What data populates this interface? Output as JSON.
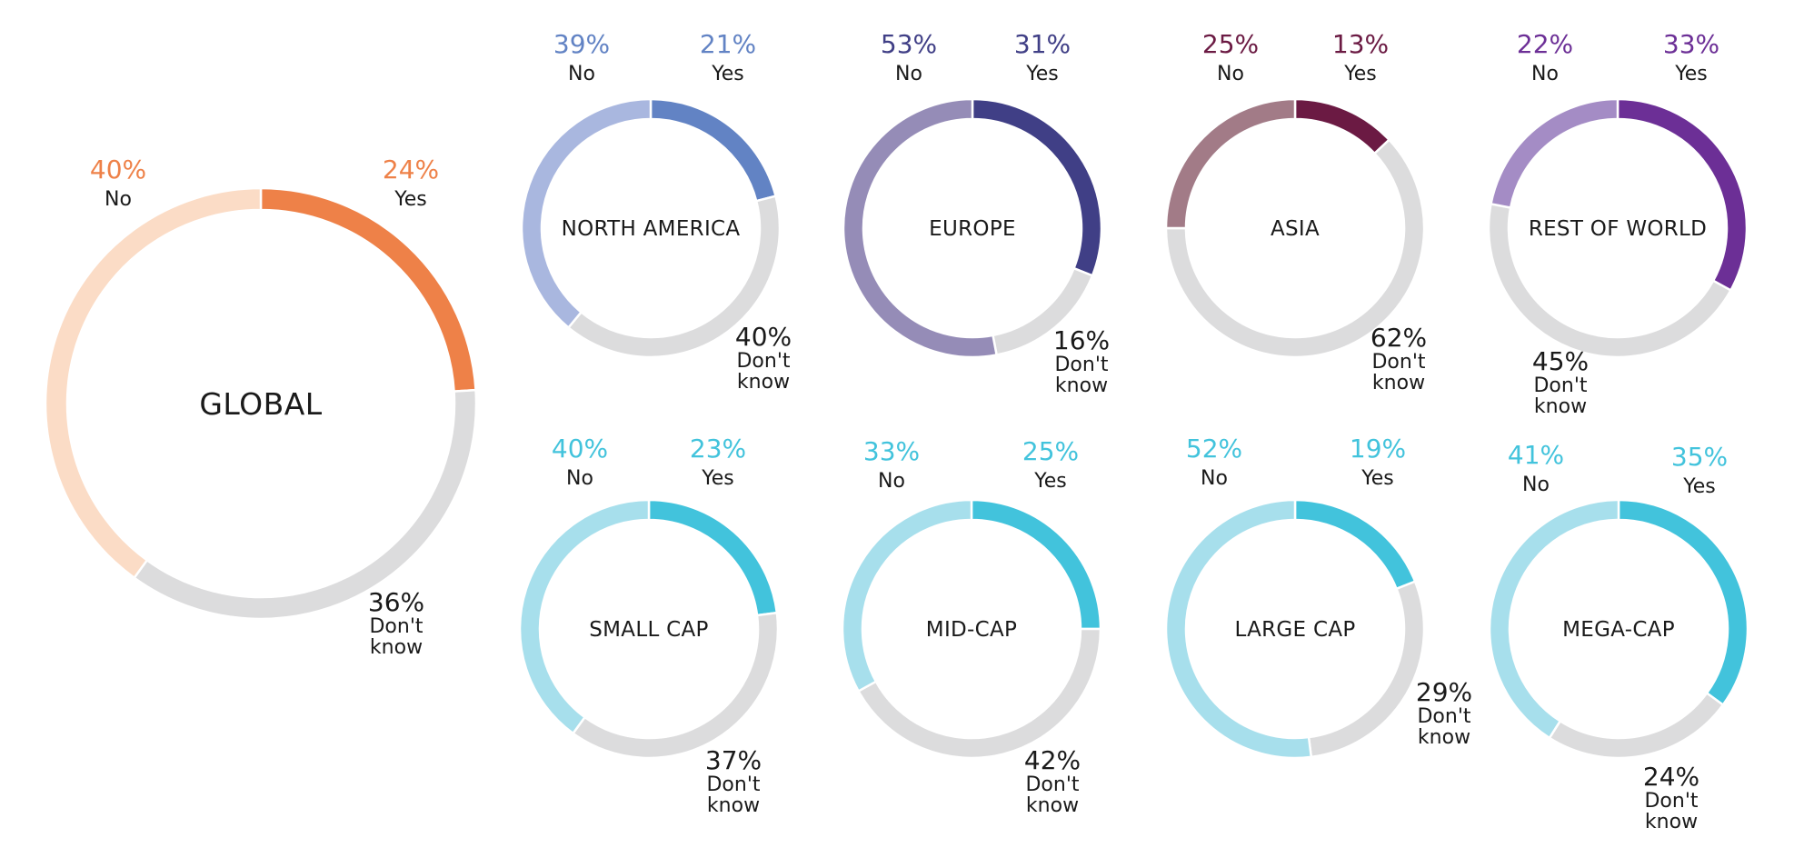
{
  "chart_data": [
    {
      "type": "pie",
      "title": "GLOBAL",
      "categories": [
        "Yes",
        "Don't know",
        "No"
      ],
      "values": [
        24,
        36,
        40
      ],
      "labels": {
        "yes": "Yes",
        "no": "No",
        "dk_line1": "Don't",
        "dk_line2": "know"
      },
      "colors": {
        "yes": "#ee8148",
        "no": "#fbdcc6",
        "dk": "#dcdcdd",
        "pct": "#ee8148"
      }
    },
    {
      "type": "pie",
      "title": "NORTH AMERICA",
      "categories": [
        "Yes",
        "Don't know",
        "No"
      ],
      "values": [
        21,
        40,
        39
      ],
      "labels": {
        "yes": "Yes",
        "no": "No",
        "dk_line1": "Don't",
        "dk_line2": "know"
      },
      "colors": {
        "yes": "#6283c4",
        "no": "#a9b7df",
        "dk": "#dcdcdd",
        "pct": "#6283c4"
      }
    },
    {
      "type": "pie",
      "title": "EUROPE",
      "categories": [
        "Yes",
        "Don't know",
        "No"
      ],
      "values": [
        31,
        16,
        53
      ],
      "labels": {
        "yes": "Yes",
        "no": "No",
        "dk_line1": "Don't",
        "dk_line2": "know"
      },
      "colors": {
        "yes": "#403f86",
        "no": "#958cb7",
        "dk": "#dcdcdd",
        "pct": "#403f86"
      }
    },
    {
      "type": "pie",
      "title": "ASIA",
      "categories": [
        "Yes",
        "Don't know",
        "No"
      ],
      "values": [
        13,
        62,
        25
      ],
      "labels": {
        "yes": "Yes",
        "no": "No",
        "dk_line1": "Don't",
        "dk_line2": "know"
      },
      "colors": {
        "yes": "#6b1a43",
        "no": "#a27b87",
        "dk": "#dcdcdd",
        "pct": "#6b1a43"
      }
    },
    {
      "type": "pie",
      "title": "REST OF WORLD",
      "categories": [
        "Yes",
        "Don't know",
        "No"
      ],
      "values": [
        33,
        45,
        22
      ],
      "labels": {
        "yes": "Yes",
        "no": "No",
        "dk_line1": "Don't",
        "dk_line2": "know"
      },
      "colors": {
        "yes": "#6c2f96",
        "no": "#a48cc5",
        "dk": "#dcdcdd",
        "pct": "#6c2f96"
      }
    },
    {
      "type": "pie",
      "title": "SMALL CAP",
      "categories": [
        "Yes",
        "Don't know",
        "No"
      ],
      "values": [
        23,
        37,
        40
      ],
      "labels": {
        "yes": "Yes",
        "no": "No",
        "dk_line1": "Don't",
        "dk_line2": "know"
      },
      "colors": {
        "yes": "#42c3dc",
        "no": "#a7dfec",
        "dk": "#dcdcdd",
        "pct": "#42c3dc"
      }
    },
    {
      "type": "pie",
      "title": "MID-CAP",
      "categories": [
        "Yes",
        "Don't know",
        "No"
      ],
      "values": [
        25,
        42,
        33
      ],
      "labels": {
        "yes": "Yes",
        "no": "No",
        "dk_line1": "Don't",
        "dk_line2": "know"
      },
      "colors": {
        "yes": "#42c3dc",
        "no": "#a7dfec",
        "dk": "#dcdcdd",
        "pct": "#42c3dc"
      }
    },
    {
      "type": "pie",
      "title": "LARGE CAP",
      "categories": [
        "Yes",
        "Don't know",
        "No"
      ],
      "values": [
        19,
        29,
        52
      ],
      "labels": {
        "yes": "Yes",
        "no": "No",
        "dk_line1": "Don't",
        "dk_line2": "know"
      },
      "colors": {
        "yes": "#42c3dc",
        "no": "#a7dfec",
        "dk": "#dcdcdd",
        "pct": "#42c3dc"
      }
    },
    {
      "type": "pie",
      "title": "MEGA-CAP",
      "categories": [
        "Yes",
        "Don't know",
        "No"
      ],
      "values": [
        35,
        24,
        41
      ],
      "labels": {
        "yes": "Yes",
        "no": "No",
        "dk_line1": "Don't",
        "dk_line2": "know"
      },
      "colors": {
        "yes": "#42c3dc",
        "no": "#a7dfec",
        "dk": "#dcdcdd",
        "pct": "#42c3dc"
      }
    }
  ]
}
